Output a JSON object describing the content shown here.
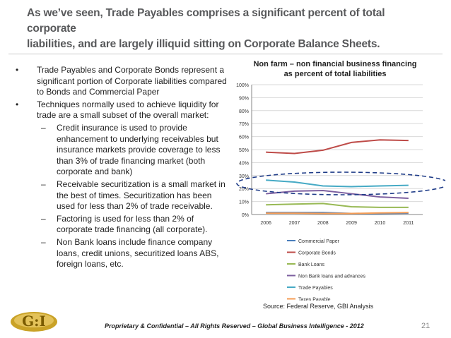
{
  "slide": {
    "title_line1": "As we’ve seen, Trade Payables comprises a significant percent of total corporate",
    "title_line2": "liabilities, and are largely illiquid sitting on Corporate Balance Sheets.",
    "logo_text": "G:I",
    "bullet_mark": "•",
    "dash_mark": "–",
    "bullets": [
      {
        "text": "Trade Payables and Corporate Bonds represent a significant portion of Corporate liabilities compared to Bonds and Commercial Paper"
      },
      {
        "text": "Techniques normally used to achieve liquidity for trade are a small subset of the overall market:"
      }
    ],
    "sub_bullets": [
      {
        "text": "Credit insurance is used to provide enhancement to underlying receivables but insurance markets provide coverage to less than 3% of trade financing market (both corporate and bank)"
      },
      {
        "text": "Receivable securitization is a small market in the best of times. Securitization has been used for less than 2% of trade receivable."
      },
      {
        "text": "Factoring is used for less than 2% of corporate trade financing (all corporate)."
      },
      {
        "text": "Non Bank loans include finance company loans, credit unions, securitized loans ABS, foreign loans, etc."
      }
    ],
    "source": "Source: Federal Reserve, GBI Analysis",
    "footer": "Proprietary & Confidential – All Rights Reserved – Global Business Intelligence - 2012",
    "page_number": "21"
  },
  "chart_data": {
    "type": "line",
    "title_line1": "Non farm – non financial business financing",
    "title_line2": "as percent of total liabilities",
    "x": [
      "2006",
      "2007",
      "2008",
      "2009",
      "2010",
      "2011"
    ],
    "ylim": [
      0,
      100
    ],
    "yticks": [
      "0%",
      "10%",
      "20%",
      "30%",
      "40%",
      "50%",
      "60%",
      "70%",
      "80%",
      "90%",
      "100%"
    ],
    "grid": true,
    "legend_position": "bottom",
    "series": [
      {
        "name": "Commercial Paper",
        "color": "#4a7ebb",
        "values": [
          1.5,
          1.5,
          1.5,
          0.8,
          0.8,
          1.0
        ]
      },
      {
        "name": "Corporate Bonds",
        "color": "#be4b48",
        "values": [
          48,
          47,
          49.5,
          55.5,
          57.5,
          57
        ]
      },
      {
        "name": "Bank Loans",
        "color": "#98b954",
        "values": [
          7.5,
          8,
          8.5,
          6,
          5.5,
          5.5
        ]
      },
      {
        "name": "Non Bank loans and advances",
        "color": "#7d60a0",
        "values": [
          16,
          18,
          18.5,
          16,
          13.5,
          12.5
        ]
      },
      {
        "name": "Trade Payables",
        "color": "#46aac5",
        "values": [
          26.5,
          25,
          22,
          21.5,
          22,
          22.5
        ]
      },
      {
        "name": "Taxes Payable",
        "color": "#f59d56",
        "values": [
          1,
          1,
          0.8,
          0.8,
          1.2,
          1.5
        ]
      }
    ]
  }
}
